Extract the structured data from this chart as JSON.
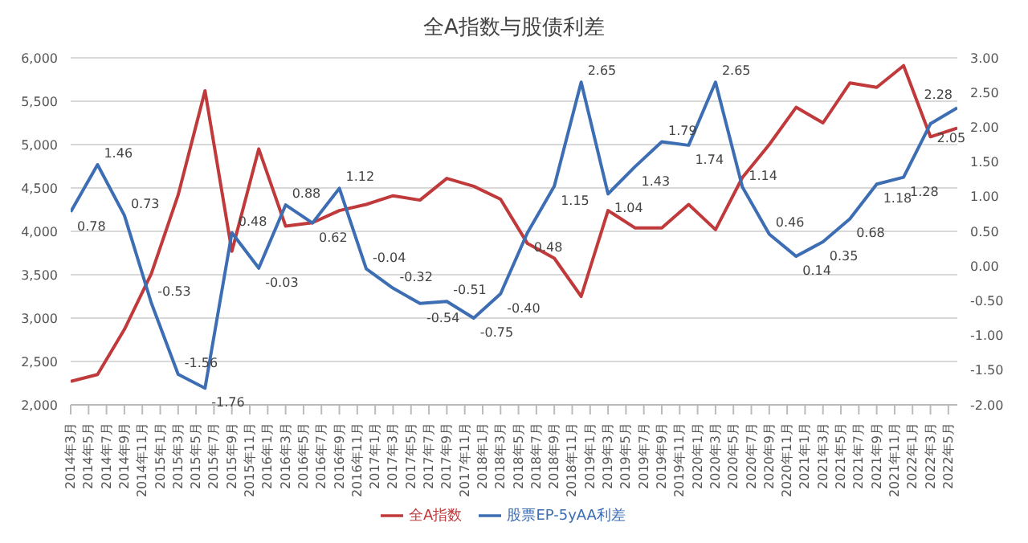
{
  "chart_data": {
    "type": "line",
    "title": "全A指数与股债利差",
    "x": [
      "2014-03",
      "2014-06",
      "2014-09",
      "2014-12",
      "2015-03",
      "2015-06",
      "2015-09",
      "2015-12",
      "2016-03",
      "2016-06",
      "2016-09",
      "2016-12",
      "2017-03",
      "2017-06",
      "2017-09",
      "2017-12",
      "2018-03",
      "2018-06",
      "2018-09",
      "2018-12",
      "2019-03",
      "2019-06",
      "2019-09",
      "2019-12",
      "2020-03",
      "2020-06",
      "2020-09",
      "2020-12",
      "2021-03",
      "2021-06",
      "2021-09",
      "2021-12",
      "2022-03",
      "2022-06"
    ],
    "series": [
      {
        "name": "全A指数",
        "color": "#c0393b",
        "values": [
          2270,
          2350,
          2870,
          3510,
          4420,
          5620,
          3770,
          4950,
          4060,
          4100,
          4240,
          4310,
          4410,
          4360,
          4610,
          4520,
          4370,
          3860,
          3690,
          3250,
          4240,
          4040,
          4040,
          4310,
          4020,
          4620,
          5000,
          5430,
          5250,
          5710,
          5660,
          5910,
          5090,
          5190
        ]
      },
      {
        "name": "股票EP-5yAA利差",
        "color": "#3d6eb4",
        "axis": "y2",
        "value_labels": [
          "0.78",
          "1.46",
          "0.73",
          "-0.53",
          "-1.56",
          "-1.76",
          "0.48",
          "-0.03",
          "0.88",
          "0.62",
          "1.12",
          "-0.04",
          "-0.32",
          "-0.54",
          "-0.51",
          "-0.75",
          "-0.40",
          "0.48",
          "1.15",
          "2.65",
          "1.04",
          "1.43",
          "1.79",
          "1.74",
          "2.65",
          "1.14",
          "0.46",
          "0.14",
          "0.35",
          "0.68",
          "1.18",
          "1.28",
          "2.05",
          "2.28"
        ],
        "values": [
          0.78,
          1.46,
          0.73,
          -0.53,
          -1.56,
          -1.76,
          0.48,
          -0.03,
          0.88,
          0.62,
          1.12,
          -0.04,
          -0.32,
          -0.54,
          -0.51,
          -0.75,
          -0.4,
          0.48,
          1.15,
          2.65,
          1.04,
          1.43,
          1.79,
          1.74,
          2.65,
          1.14,
          0.46,
          0.14,
          0.35,
          0.68,
          1.18,
          1.28,
          2.05,
          2.28
        ]
      }
    ],
    "xlim": [
      "2014-03",
      "2022-06"
    ],
    "xticks": [
      {
        "value": "2014-03",
        "label": "2014年3月"
      },
      {
        "value": "2014-05",
        "label": "2014年5月"
      },
      {
        "value": "2014-07",
        "label": "2014年7月"
      },
      {
        "value": "2014-09",
        "label": "2014年9月"
      },
      {
        "value": "2014-11",
        "label": "2014年11月"
      },
      {
        "value": "2015-01",
        "label": "2015年1月"
      },
      {
        "value": "2015-03",
        "label": "2015年3月"
      },
      {
        "value": "2015-05",
        "label": "2015年5月"
      },
      {
        "value": "2015-07",
        "label": "2015年7月"
      },
      {
        "value": "2015-09",
        "label": "2015年9月"
      },
      {
        "value": "2015-11",
        "label": "2015年11月"
      },
      {
        "value": "2016-01",
        "label": "2016年1月"
      },
      {
        "value": "2016-03",
        "label": "2016年3月"
      },
      {
        "value": "2016-05",
        "label": "2016年5月"
      },
      {
        "value": "2016-07",
        "label": "2016年7月"
      },
      {
        "value": "2016-09",
        "label": "2016年9月"
      },
      {
        "value": "2016-11",
        "label": "2016年11月"
      },
      {
        "value": "2017-01",
        "label": "2017年1月"
      },
      {
        "value": "2017-03",
        "label": "2017年3月"
      },
      {
        "value": "2017-05",
        "label": "2017年5月"
      },
      {
        "value": "2017-07",
        "label": "2017年7月"
      },
      {
        "value": "2017-09",
        "label": "2017年9月"
      },
      {
        "value": "2017-11",
        "label": "2017年11月"
      },
      {
        "value": "2018-01",
        "label": "2018年1月"
      },
      {
        "value": "2018-03",
        "label": "2018年3月"
      },
      {
        "value": "2018-05",
        "label": "2018年5月"
      },
      {
        "value": "2018-07",
        "label": "2018年7月"
      },
      {
        "value": "2018-09",
        "label": "2018年9月"
      },
      {
        "value": "2018-11",
        "label": "2018年11月"
      },
      {
        "value": "2019-01",
        "label": "2019年1月"
      },
      {
        "value": "2019-03",
        "label": "2019年3月"
      },
      {
        "value": "2019-05",
        "label": "2019年5月"
      },
      {
        "value": "2019-07",
        "label": "2019年7月"
      },
      {
        "value": "2019-09",
        "label": "2019年9月"
      },
      {
        "value": "2019-11",
        "label": "2019年11月"
      },
      {
        "value": "2020-01",
        "label": "2020年1月"
      },
      {
        "value": "2020-03",
        "label": "2020年3月"
      },
      {
        "value": "2020-05",
        "label": "2020年5月"
      },
      {
        "value": "2020-07",
        "label": "2020年7月"
      },
      {
        "value": "2020-09",
        "label": "2020年9月"
      },
      {
        "value": "2020-11",
        "label": "2020年11月"
      },
      {
        "value": "2021-01",
        "label": "2021年1月"
      },
      {
        "value": "2021-03",
        "label": "2021年3月"
      },
      {
        "value": "2021-05",
        "label": "2021年5月"
      },
      {
        "value": "2021-07",
        "label": "2021年7月"
      },
      {
        "value": "2021-09",
        "label": "2021年9月"
      },
      {
        "value": "2021-11",
        "label": "2021年11月"
      },
      {
        "value": "2022-01",
        "label": "2022年1月"
      },
      {
        "value": "2022-03",
        "label": "2022年3月"
      },
      {
        "value": "2022-05",
        "label": "2022年5月"
      }
    ],
    "ylim": [
      2000,
      6000
    ],
    "yticks": [
      {
        "value": 2000,
        "label": "2,000"
      },
      {
        "value": 2500,
        "label": "2,500"
      },
      {
        "value": 3000,
        "label": "3,000"
      },
      {
        "value": 3500,
        "label": "3,500"
      },
      {
        "value": 4000,
        "label": "4,000"
      },
      {
        "value": 4500,
        "label": "4,500"
      },
      {
        "value": 5000,
        "label": "5,000"
      },
      {
        "value": 5500,
        "label": "5,500"
      },
      {
        "value": 6000,
        "label": "6,000"
      }
    ],
    "y2lim": [
      -2,
      3
    ],
    "y2ticks": [
      {
        "value": -2,
        "label": "-2.00"
      },
      {
        "value": -1.5,
        "label": "-1.50"
      },
      {
        "value": -1,
        "label": "-1.00"
      },
      {
        "value": -0.5,
        "label": "-0.50"
      },
      {
        "value": 0,
        "label": "0.00"
      },
      {
        "value": 0.5,
        "label": "0.50"
      },
      {
        "value": 1,
        "label": "1.00"
      },
      {
        "value": 1.5,
        "label": "1.50"
      },
      {
        "value": 2,
        "label": "2.00"
      },
      {
        "value": 2.5,
        "label": "2.50"
      },
      {
        "value": 3,
        "label": "3.00"
      }
    ],
    "grid": "y",
    "legend": "bottom",
    "marker": "none",
    "line_style": "solid"
  }
}
